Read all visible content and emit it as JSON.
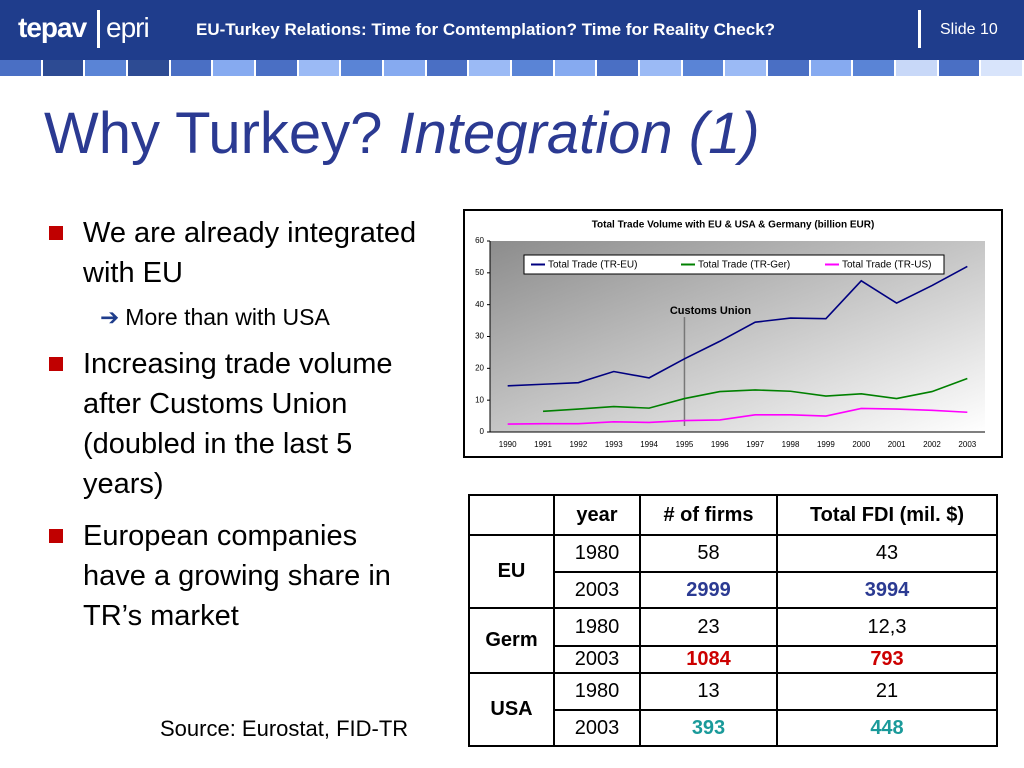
{
  "header": {
    "logo_left": "tepav",
    "logo_right": "epri",
    "title": "EU-Turkey Relations: Time for Comtemplation? Time for Reality Check?",
    "slide": "Slide 10"
  },
  "title": {
    "main": "Why Turkey?",
    "italic": "Integration (1)"
  },
  "bullets": [
    {
      "text": "We are already integrated with EU",
      "sub": [
        "More than with USA"
      ]
    },
    {
      "text": "Increasing trade volume after Customs Union (doubled in the last 5 years)"
    },
    {
      "text": "European companies have a growing share in TR’s market"
    }
  ],
  "source": "Source: Eurostat, FID-TR",
  "chart_data": {
    "type": "line",
    "title": "Total Trade Volume with EU & USA & Germany (billion EUR)",
    "categories": [
      "1990",
      "1991",
      "1992",
      "1993",
      "1994",
      "1995",
      "1996",
      "1997",
      "1998",
      "1999",
      "2000",
      "2001",
      "2002",
      "2003"
    ],
    "series": [
      {
        "name": "Total Trade (TR-EU)",
        "color": "#000080",
        "values": [
          14.5,
          15,
          15.5,
          19,
          17,
          23,
          28.5,
          34.5,
          35.8,
          35.6,
          47.5,
          40.5,
          46,
          52
        ]
      },
      {
        "name": "Total Trade (TR-Ger)",
        "color": "#008000",
        "values": [
          null,
          6.5,
          7.2,
          8,
          7.5,
          10.5,
          12.7,
          13.2,
          12.8,
          11.3,
          12,
          10.5,
          12.7,
          16.8
        ]
      },
      {
        "name": "Total Trade (TR-US)",
        "color": "#ff00ff",
        "values": [
          2.5,
          2.6,
          2.6,
          3.2,
          3,
          3.6,
          3.8,
          5.4,
          5.4,
          5,
          7.4,
          7.2,
          6.8,
          6.2
        ]
      }
    ],
    "ylim": [
      0,
      60
    ],
    "yticks": [
      0,
      10,
      20,
      30,
      40,
      50,
      60
    ],
    "annotation": {
      "text": "Customs Union",
      "x": "1995"
    }
  },
  "table": {
    "header": [
      "year",
      "# of firms",
      "Total FDI (mil. $)"
    ],
    "groups": [
      {
        "name": "EU",
        "highlight_color": "#2b3a92",
        "rows": [
          [
            "1980",
            "58",
            "43"
          ],
          [
            "2003",
            "2999",
            "3994"
          ]
        ]
      },
      {
        "name": "Germ",
        "highlight_color": "#cc0000",
        "rows": [
          [
            "1980",
            "23",
            "12,3"
          ],
          [
            "2003",
            "1084",
            "793"
          ]
        ]
      },
      {
        "name": "USA",
        "highlight_color": "#1a9a9a",
        "rows": [
          [
            "1980",
            "13",
            "21"
          ],
          [
            "2003",
            "393",
            "448"
          ]
        ]
      }
    ]
  }
}
